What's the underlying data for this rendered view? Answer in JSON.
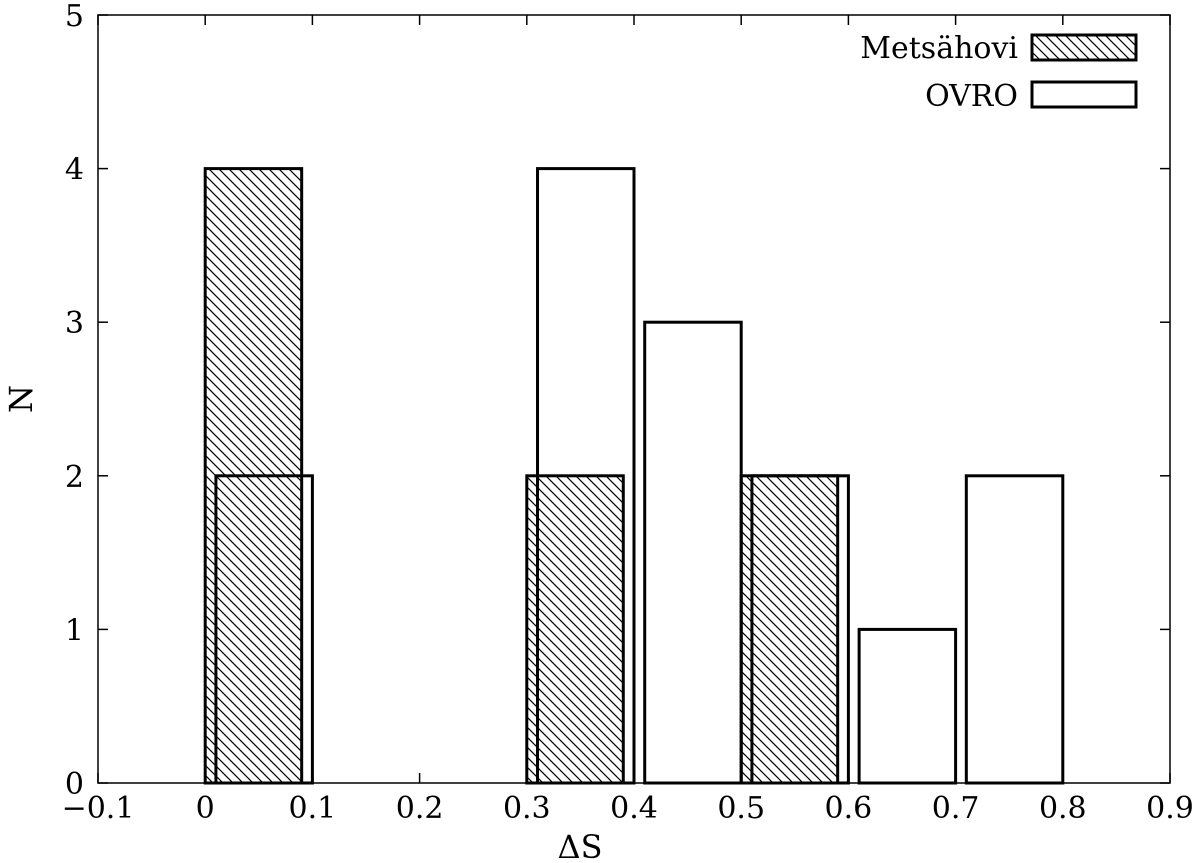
{
  "chart_data": {
    "type": "bar",
    "xlabel": "ΔS",
    "ylabel": "N",
    "xlim": [
      -0.1,
      0.9
    ],
    "ylim": [
      0,
      5
    ],
    "xticks": [
      "−0.1",
      "0",
      "0.1",
      "0.2",
      "0.3",
      "0.4",
      "0.5",
      "0.6",
      "0.7",
      "0.8",
      "0.9"
    ],
    "xtick_values": [
      -0.1,
      0,
      0.1,
      0.2,
      0.3,
      0.4,
      0.5,
      0.6,
      0.7,
      0.8,
      0.9
    ],
    "yticks": [
      "0",
      "1",
      "2",
      "3",
      "4",
      "5"
    ],
    "ytick_values": [
      0,
      1,
      2,
      3,
      4,
      5
    ],
    "grid": false,
    "legend_position": "top-right",
    "series": [
      {
        "name": "Metsähovi",
        "style": "hatched",
        "bins": [
          {
            "x0": 0.0,
            "x1": 0.09,
            "count": 4
          },
          {
            "x0": 0.3,
            "x1": 0.39,
            "count": 2
          },
          {
            "x0": 0.5,
            "x1": 0.59,
            "count": 2
          }
        ]
      },
      {
        "name": "OVRO",
        "style": "open",
        "bins": [
          {
            "x0": 0.01,
            "x1": 0.1,
            "count": 2
          },
          {
            "x0": 0.31,
            "x1": 0.4,
            "count": 4
          },
          {
            "x0": 0.41,
            "x1": 0.5,
            "count": 3
          },
          {
            "x0": 0.51,
            "x1": 0.6,
            "count": 2
          },
          {
            "x0": 0.61,
            "x1": 0.7,
            "count": 1
          },
          {
            "x0": 0.71,
            "x1": 0.8,
            "count": 2
          }
        ]
      }
    ]
  }
}
